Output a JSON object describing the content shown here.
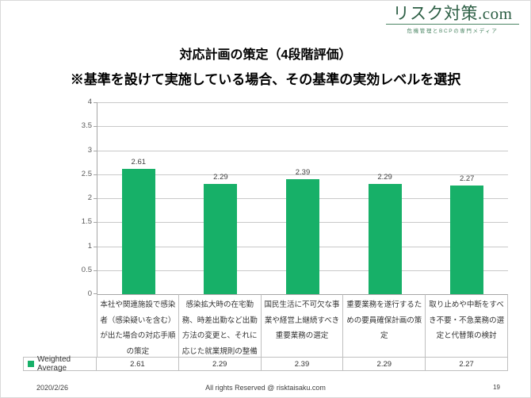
{
  "logo": {
    "title": "リスク対策.com",
    "tagline": "危機管理とBCPの専門メディア"
  },
  "slide": {
    "title": "対応計画の策定（4段階評価）",
    "subtitle": "※基準を設けて実施している場合、その基準の実効レベルを選択"
  },
  "chart_data": {
    "type": "bar",
    "title": "対応計画の策定（4段階評価）",
    "categories": [
      "本社や関連施設で感染者（感染疑いを含む）が出た場合の対応手順の策定",
      "感染拡大時の在宅勤務、時差出勤など出勤方法の変更と、それに応じた就業規則の整備",
      "国民生活に不可欠な事業や経営上継続すべき重要業務の選定",
      "重要業務を遂行するための要員確保計画の策定",
      "取り止めや中断をすべき不要・不急業務の選定と代替策の検討"
    ],
    "series": [
      {
        "name": "Weighted Average",
        "values": [
          2.61,
          2.29,
          2.39,
          2.29,
          2.27
        ]
      }
    ],
    "xlabel": "",
    "ylabel": "",
    "ylim": [
      0,
      4
    ],
    "yticks": [
      0,
      0.5,
      1,
      1.5,
      2,
      2.5,
      3,
      3.5,
      4
    ],
    "grid": true,
    "legend_position": "bottom-left-data-table",
    "data_table": true
  },
  "colors": {
    "bar": "#17b068",
    "logo_green": "#2d5f45",
    "logo_light_green": "#4a8563",
    "gridline": "#c9c9c9",
    "axis": "#a6a6a6",
    "table_border": "#bfbfbf"
  },
  "footer": {
    "date": "2020/2/26",
    "copyright": "All rights Reserved @ risktaisaku.com",
    "page": "19"
  }
}
